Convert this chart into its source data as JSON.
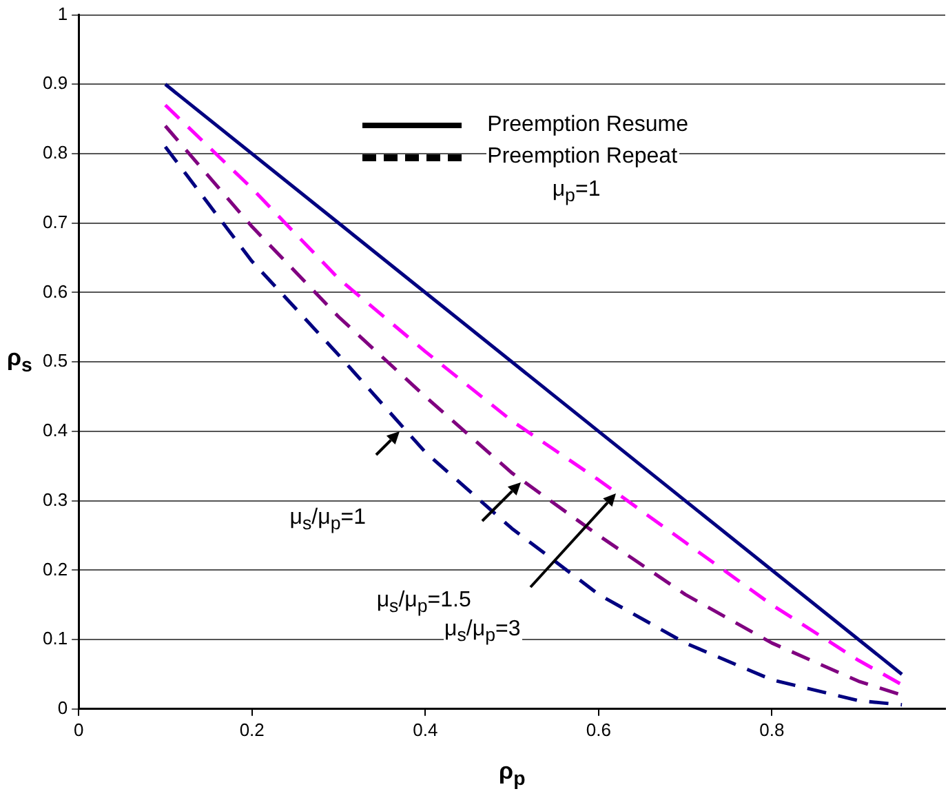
{
  "chart_data": {
    "type": "line",
    "xlabel": "ρ$_{p}$",
    "ylabel": "ρ$_{s}$",
    "xlim": [
      0,
      1
    ],
    "xticks": [
      0,
      0.2,
      0.4,
      0.6,
      0.8
    ],
    "ylim": [
      0,
      1
    ],
    "yticks": [
      0,
      0.1,
      0.2,
      0.3,
      0.4,
      0.5,
      0.6,
      0.7,
      0.8,
      0.9,
      1
    ],
    "grid": "y",
    "marker": "none",
    "series": [
      {
        "color": "#000080",
        "line_style": "solid",
        "x": [
          0.1,
          0.95
        ],
        "values": [
          0.9,
          0.05
        ]
      },
      {
        "color": "#ff00ff",
        "line_style": "dashed",
        "x": [
          0.1,
          0.15,
          0.2,
          0.3,
          0.4,
          0.5,
          0.6,
          0.7,
          0.8,
          0.9,
          0.95
        ],
        "values": [
          0.87,
          0.81,
          0.75,
          0.62,
          0.515,
          0.415,
          0.33,
          0.24,
          0.15,
          0.07,
          0.035
        ]
      },
      {
        "color": "#800080",
        "line_style": "dashed",
        "x": [
          0.1,
          0.2,
          0.3,
          0.4,
          0.5,
          0.6,
          0.7,
          0.8,
          0.9,
          0.95
        ],
        "values": [
          0.84,
          0.695,
          0.565,
          0.45,
          0.34,
          0.25,
          0.165,
          0.095,
          0.04,
          0.02
        ]
      },
      {
        "color": "#000080",
        "line_style": "dashed",
        "x": [
          0.1,
          0.2,
          0.3,
          0.4,
          0.5,
          0.6,
          0.7,
          0.8,
          0.9,
          0.95
        ],
        "values": [
          0.81,
          0.645,
          0.51,
          0.37,
          0.26,
          0.165,
          0.095,
          0.042,
          0.012,
          0.006
        ]
      }
    ],
    "annotations": [
      "Preemption Resume",
      "Preemption Repeat",
      "μ$_{p}$=1",
      "μ$_{s}$/μ$_{p}$=1",
      "μ$_{s}$/μ$_{p}$=1.5",
      "μ$_{s}$/μ$_{p}$=3"
    ]
  }
}
